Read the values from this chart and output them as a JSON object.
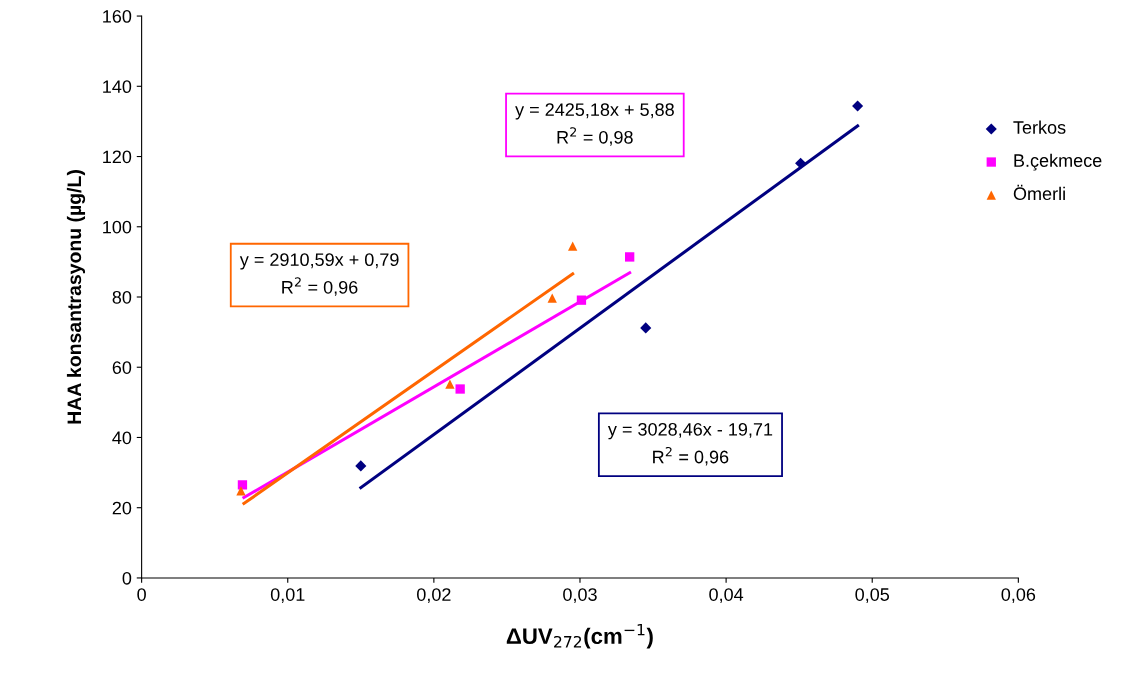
{
  "chart_data": {
    "type": "scatter",
    "xlabel": "ΔUV$_{272}$(cm$^{−1}$)",
    "ylabel": "HAA konsantrasyonu (µg/L)",
    "xlim": [
      0,
      0.06
    ],
    "ylim": [
      0,
      160
    ],
    "xticks": [
      0,
      {
        "value": 0.01,
        "label": "0,01"
      },
      {
        "value": 0.02,
        "label": "0,02"
      },
      {
        "value": 0.03,
        "label": "0,03"
      },
      {
        "value": 0.04,
        "label": "0,04"
      },
      {
        "value": 0.05,
        "label": "0,05"
      },
      {
        "value": 0.06,
        "label": "0,06"
      }
    ],
    "yticks": [
      0,
      20,
      40,
      60,
      80,
      100,
      120,
      140,
      160
    ],
    "grid": false,
    "legend": "right",
    "series": [
      {
        "name": "Terkos",
        "color": "#000080",
        "marker": "diamond",
        "x": [
          0.015,
          0.0345,
          0.0451,
          0.049
        ],
        "values": [
          31.9,
          71.2,
          118.1,
          134.4
        ]
      },
      {
        "name": "B.çekmece",
        "color": "#ff00ff",
        "marker": "square",
        "x": [
          0.0069,
          0.0218,
          0.0301,
          0.0334
        ],
        "values": [
          26.5,
          53.8,
          79.1,
          91.4
        ]
      },
      {
        "name": "Ömerli",
        "color": "#ff6600",
        "marker": "triangle",
        "x": [
          0.0068,
          0.0211,
          0.0281,
          0.0295
        ],
        "values": [
          24.8,
          55.2,
          79.7,
          94.5
        ]
      },
      {
        "type": "line",
        "color": "#000080",
        "x": [
          0.015,
          0.049
        ],
        "values": [
          25.7,
          128.7
        ]
      },
      {
        "type": "line",
        "color": "#ff00ff",
        "x": [
          0.007,
          0.0334
        ],
        "values": [
          22.9,
          86.9
        ]
      },
      {
        "type": "line",
        "color": "#ff6600",
        "x": [
          0.007,
          0.0295
        ],
        "values": [
          21.2,
          86.6
        ]
      }
    ],
    "annotations": [
      "y = 2425,18x + 5,88\nR$^{2}$ = 0,98",
      "y = 2910,59x + 0,79\nR$^{2}$ = 0,96",
      "y = 3028,46x - 19,71\nR$^{2}$ = 0,96"
    ]
  }
}
